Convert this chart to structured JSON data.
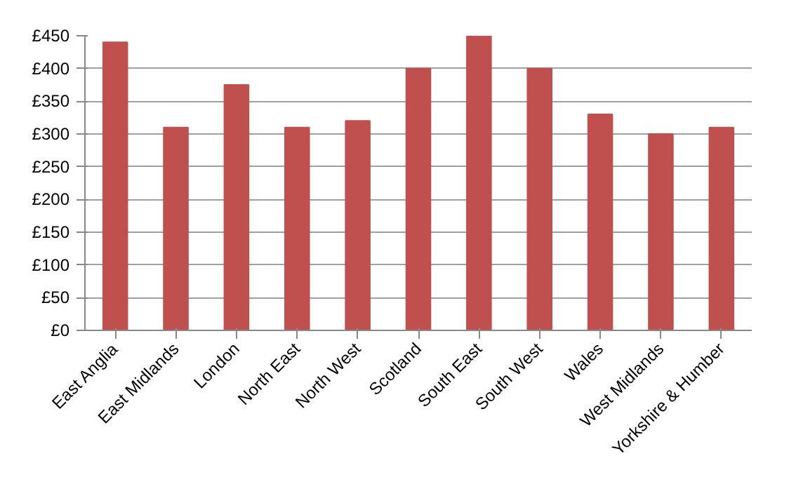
{
  "chart_data": {
    "type": "bar",
    "categories": [
      "East Anglia",
      "East Midlands",
      "London",
      "North East",
      "North West",
      "Scotland",
      "South East",
      "South West",
      "Wales",
      "West Midlands",
      "Yorkshire & Humber"
    ],
    "values": [
      440,
      310,
      375,
      310,
      320,
      400,
      450,
      400,
      330,
      300,
      310
    ],
    "color": "#c0504d",
    "ylim": [
      0,
      450
    ],
    "yticks": [
      {
        "value": 0,
        "label": "£0"
      },
      {
        "value": 50,
        "label": "£50"
      },
      {
        "value": 100,
        "label": "£100"
      },
      {
        "value": 150,
        "label": "£150"
      },
      {
        "value": 200,
        "label": "£200"
      },
      {
        "value": 250,
        "label": "£250"
      },
      {
        "value": 300,
        "label": "£300"
      },
      {
        "value": 350,
        "label": "£350"
      },
      {
        "value": 400,
        "label": "£400"
      },
      {
        "value": 450,
        "label": "£450"
      }
    ],
    "grid": "y"
  }
}
